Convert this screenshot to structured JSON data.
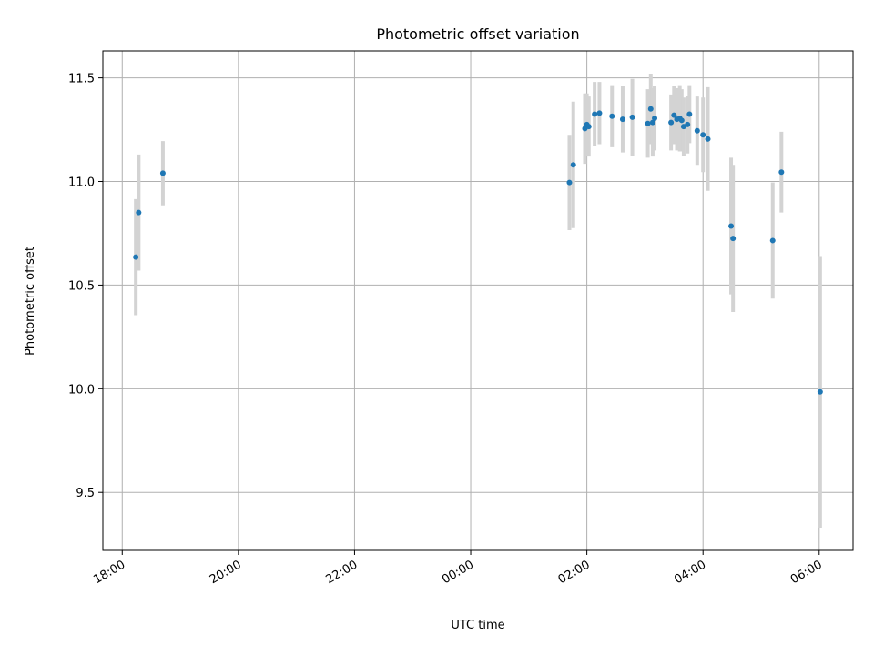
{
  "chart_data": {
    "type": "scatter",
    "title": "Photometric offset variation",
    "xlabel": "UTC time",
    "ylabel": "Photometric offset",
    "grid": true,
    "x_is_time": true,
    "x_ticks": [
      "18:00",
      "20:00",
      "22:00",
      "00:00",
      "02:00",
      "04:00",
      "06:00"
    ],
    "y_ticks": [
      9.5,
      10.0,
      10.5,
      11.0,
      11.5
    ],
    "y_tick_labels": [
      "9.5",
      "10.0",
      "10.5",
      "11.0",
      "11.5"
    ],
    "xlim": [
      "17:40",
      "06:35"
    ],
    "ylim": [
      9.22,
      11.63
    ],
    "colors": {
      "point": "#1f77b4",
      "errorbar": "#d3d3d3",
      "grid": "#b0b0b0",
      "axes": "#000000"
    },
    "series": [
      {
        "points": [
          {
            "x": "18:14",
            "y": 10.635,
            "yerr": 0.28
          },
          {
            "x": "18:17",
            "y": 10.85,
            "yerr": 0.28
          },
          {
            "x": "18:42",
            "y": 11.04,
            "yerr": 0.155
          },
          {
            "x": "01:42",
            "y": 10.995,
            "yerr": 0.23
          },
          {
            "x": "01:46",
            "y": 11.08,
            "yerr": 0.305
          },
          {
            "x": "01:58",
            "y": 11.255,
            "yerr": 0.17
          },
          {
            "x": "02:00",
            "y": 11.275,
            "yerr": 0.15
          },
          {
            "x": "02:02",
            "y": 11.265,
            "yerr": 0.145
          },
          {
            "x": "02:08",
            "y": 11.325,
            "yerr": 0.155
          },
          {
            "x": "02:13",
            "y": 11.33,
            "yerr": 0.15
          },
          {
            "x": "02:26",
            "y": 11.315,
            "yerr": 0.15
          },
          {
            "x": "02:37",
            "y": 11.3,
            "yerr": 0.16
          },
          {
            "x": "02:47",
            "y": 11.31,
            "yerr": 0.185
          },
          {
            "x": "03:03",
            "y": 11.28,
            "yerr": 0.165
          },
          {
            "x": "03:06",
            "y": 11.35,
            "yerr": 0.17
          },
          {
            "x": "03:08",
            "y": 11.285,
            "yerr": 0.165
          },
          {
            "x": "03:10",
            "y": 11.305,
            "yerr": 0.155
          },
          {
            "x": "03:27",
            "y": 11.285,
            "yerr": 0.135
          },
          {
            "x": "03:30",
            "y": 11.32,
            "yerr": 0.14
          },
          {
            "x": "03:33",
            "y": 11.3,
            "yerr": 0.15
          },
          {
            "x": "03:36",
            "y": 11.305,
            "yerr": 0.16
          },
          {
            "x": "03:38",
            "y": 11.295,
            "yerr": 0.15
          },
          {
            "x": "03:40",
            "y": 11.265,
            "yerr": 0.14
          },
          {
            "x": "03:44",
            "y": 11.275,
            "yerr": 0.14
          },
          {
            "x": "03:46",
            "y": 11.325,
            "yerr": 0.14
          },
          {
            "x": "03:54",
            "y": 11.245,
            "yerr": 0.165
          },
          {
            "x": "04:00",
            "y": 11.225,
            "yerr": 0.18
          },
          {
            "x": "04:05",
            "y": 11.205,
            "yerr": 0.25
          },
          {
            "x": "04:29",
            "y": 10.785,
            "yerr": 0.33
          },
          {
            "x": "04:31",
            "y": 10.725,
            "yerr": 0.355
          },
          {
            "x": "05:12",
            "y": 10.715,
            "yerr": 0.28
          },
          {
            "x": "05:21",
            "y": 11.045,
            "yerr": 0.195
          },
          {
            "x": "06:01",
            "y": 9.985,
            "yerr": 0.655
          }
        ]
      }
    ]
  }
}
